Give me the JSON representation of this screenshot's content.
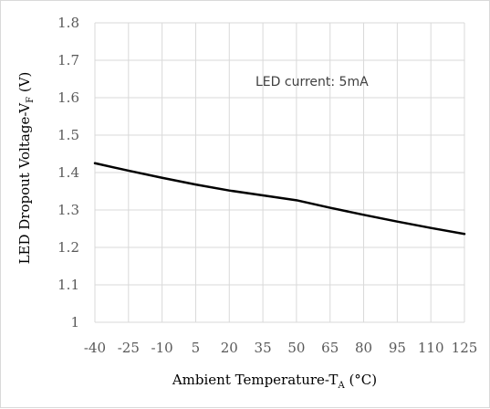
{
  "chart_data": {
    "type": "line",
    "x": [
      -40,
      -25,
      -10,
      5,
      20,
      35,
      50,
      65,
      80,
      95,
      110,
      125
    ],
    "series": [
      {
        "values": [
          1.425,
          1.405,
          1.386,
          1.368,
          1.352,
          1.339,
          1.326,
          1.306,
          1.287,
          1.269,
          1.252,
          1.236
        ]
      }
    ],
    "x_tick_labels": [
      "-40",
      "-25",
      "-10",
      "5",
      "20",
      "35",
      "50",
      "65",
      "80",
      "95",
      "110",
      "125"
    ],
    "y_tick_labels": [
      "1",
      "1.1",
      "1.2",
      "1.3",
      "1.4",
      "1.5",
      "1.6",
      "1.7",
      "1.8"
    ],
    "xlim": [
      -40,
      125
    ],
    "ylim": [
      1,
      1.8
    ],
    "xlabel": {
      "main": "Ambient Temperature-T",
      "sub": "A",
      "suffix": " (°C)"
    },
    "ylabel": {
      "main": "LED Dropout Voltage-V",
      "sub": "F",
      "suffix": " (V)"
    },
    "annotation": "LED current: 5mA",
    "grid": true,
    "line_color": "#000000",
    "grid_color": "#d9d9d9"
  }
}
